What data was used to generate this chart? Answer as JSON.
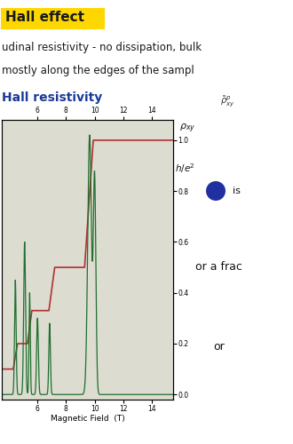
{
  "title_highlight": "Hall effect",
  "title_highlight_bg": "#FFD700",
  "title_highlight_text": "#1a1a1a",
  "line1_text": "udinal resistivity - no dissipation, bulk",
  "line2_text": "mostly along the edges of the sampl",
  "subtitle": "Hall resistivity",
  "xlabel": "Magnetic Field  (T)",
  "xticks": [
    6,
    8,
    10,
    12,
    14
  ],
  "yticks_right": [
    0.0,
    0.2,
    0.4,
    0.6,
    0.8,
    1.0
  ],
  "xlim": [
    3.5,
    15.5
  ],
  "ylim": [
    -0.02,
    1.08
  ],
  "annotation_right1": "or a frac",
  "annotation_right2": "or",
  "bg_color": "#ffffff",
  "plot_bg": "#dcdcd0",
  "red_line_color": "#b03030",
  "green_line_color": "#207030",
  "text_color": "#1a1a1a",
  "blue_dot_color": "#2030a0",
  "subtitle_color": "#1a3a9a"
}
